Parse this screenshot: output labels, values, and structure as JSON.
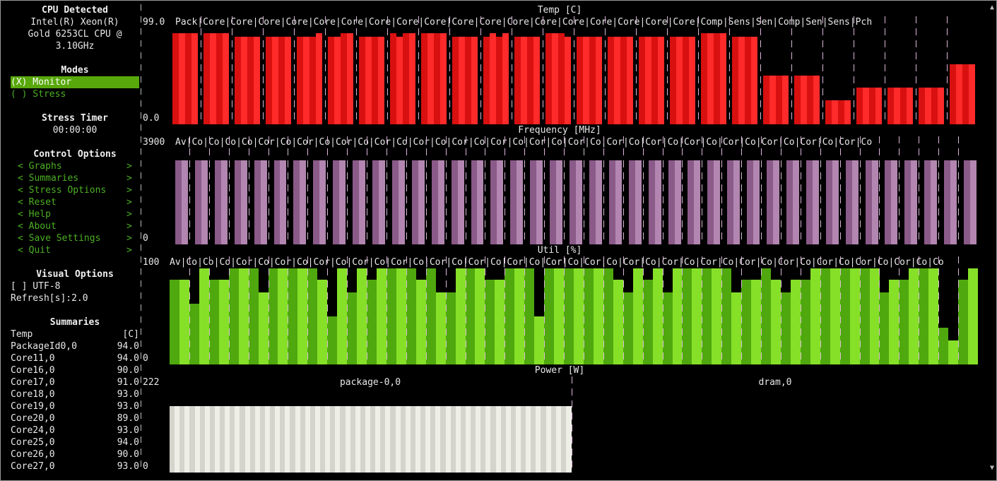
{
  "sidebar": {
    "cpu_header": "CPU Detected",
    "cpu_lines": [
      "Intel(R) Xeon(R)",
      "Gold 6253CL CPU @",
      "3.10GHz"
    ],
    "modes_header": "Modes",
    "mode_monitor": "(X) Monitor",
    "mode_stress": "( ) Stress",
    "timer_header": "Stress Timer",
    "timer_value": "00:00:00",
    "control_header": "Control Options",
    "control_items": [
      "Graphs",
      "Summaries",
      "Stress Options",
      "Reset",
      "Help",
      "About",
      "Save Settings",
      "Quit"
    ],
    "visual_header": "Visual Options",
    "utf8": "[ ] UTF-8",
    "refresh": "Refresh[s]:2.0",
    "summaries_header": "Summaries",
    "summary_col_name": "Temp",
    "summary_col_unit": "[C]",
    "summary_rows": [
      {
        "name": "PackageId0,0",
        "value": "94.0"
      },
      {
        "name": "Core11,0",
        "value": "94.0"
      },
      {
        "name": "Core16,0",
        "value": "90.0"
      },
      {
        "name": "Core17,0",
        "value": "91.0"
      },
      {
        "name": "Core18,0",
        "value": "93.0"
      },
      {
        "name": "Core19,0",
        "value": "93.0"
      },
      {
        "name": "Core20,0",
        "value": "89.0"
      },
      {
        "name": "Core24,0",
        "value": "93.0"
      },
      {
        "name": "Core25,0",
        "value": "94.0"
      },
      {
        "name": "Core26,0",
        "value": "90.0"
      },
      {
        "name": "Core27,0",
        "value": "93.0"
      }
    ]
  },
  "colors": {
    "temp_a": "#d81010",
    "temp_b": "#ff2a2a",
    "freq_a": "#8a5a88",
    "freq_b": "#b286b0",
    "util_a": "#4fa80e",
    "util_b": "#86e028",
    "power_a": "#d4d4cc",
    "power_b": "#efefe8",
    "menu_text": "#4caf24"
  },
  "graphs": {
    "temp": {
      "title": "Temp [C]",
      "ymax": "99.0",
      "ymin": "0.0",
      "labels": "Pack|Core|Core|Core|Core|Core|Core|Core|Core|Core|Core|Core|Core|Core|Core|Core|Core|Core|Core|Comp|Sens|Sen|Comp|Sen|Sens|Pch",
      "max": 99,
      "values": [
        [
          94,
          94,
          94,
          94
        ],
        [
          94,
          94,
          94,
          94
        ],
        [
          90,
          90,
          90,
          90
        ],
        [
          90,
          90,
          90,
          90
        ],
        [
          90,
          90,
          90,
          94
        ],
        [
          90,
          90,
          94,
          94
        ],
        [
          90,
          90,
          90,
          90
        ],
        [
          94,
          90,
          94,
          94
        ],
        [
          94,
          94,
          94,
          94
        ],
        [
          90,
          90,
          90,
          90
        ],
        [
          90,
          94,
          90,
          94
        ],
        [
          90,
          90,
          90,
          90
        ],
        [
          94,
          94,
          94,
          90
        ],
        [
          90,
          90,
          90,
          90
        ],
        [
          90,
          90,
          90,
          90
        ],
        [
          90,
          90,
          90,
          90
        ],
        [
          90,
          90,
          90,
          90
        ],
        [
          94,
          94,
          94,
          94
        ],
        [
          90,
          90,
          90,
          90
        ],
        [
          50,
          50,
          50,
          50
        ],
        [
          50,
          50,
          50,
          50
        ],
        [
          25,
          25,
          25,
          25
        ],
        [
          38,
          38,
          38,
          38
        ],
        [
          38,
          38,
          38,
          38
        ],
        [
          38,
          38,
          38,
          38
        ],
        [
          62,
          62,
          62,
          62
        ]
      ]
    },
    "freq": {
      "title": "Frequency [MHz]",
      "ymax": "3900",
      "ymin": "0",
      "labels": "Av|Co|Co|Co|Co|Cor|Co|Cor|Co|Cor|Co|Cor|Co|Cor|Co|Cor|Co|Cor|Co|Cor|Co|Cor|Co|Cor|Co|Cor|Co|Cor|Co|Cor|Co|Cor|Co|Cor|Co|Cor|Co",
      "max": 3900,
      "count": 41,
      "value": 3400
    },
    "util": {
      "title": "Util [%]",
      "ymax": "100",
      "ymin": "0",
      "labels": "Av|Co|Co|Co|Cor|Co|Cor|Co|Cor|Co|Cor|Co|Cor|Co|Cor|Co|Cor|Co|Cor|Co|Cor|Co|Cor|Co|Cor|Co|Cor|Co|Cor|Co|Cor|Co|Cor|Co|Cor|Co|Cor|Co|Cor|Co|Co",
      "max": 100,
      "values": [
        88,
        88,
        63,
        100,
        88,
        88,
        100,
        100,
        100,
        75,
        100,
        100,
        100,
        100,
        100,
        88,
        50,
        100,
        75,
        100,
        88,
        100,
        100,
        100,
        100,
        88,
        100,
        75,
        75,
        100,
        100,
        100,
        88,
        88,
        100,
        100,
        100,
        50,
        100,
        100,
        100,
        100,
        100,
        100,
        100,
        88,
        75,
        100,
        88,
        100,
        75,
        100,
        100,
        100,
        100,
        100,
        100,
        75,
        88,
        88,
        100,
        88,
        75,
        88,
        88,
        100,
        100,
        100,
        100,
        100,
        100,
        100,
        75,
        88,
        88,
        100,
        100,
        100,
        38,
        25,
        88,
        100
      ]
    },
    "power": {
      "title": "Power [W]",
      "ymax": "222",
      "ymin": "0",
      "package_label": "package-0,0",
      "dram_label": "dram,0",
      "max": 222,
      "values": [
        175,
        175,
        175,
        175,
        175,
        175,
        175,
        175,
        175,
        175,
        175,
        175,
        175,
        175,
        175,
        175,
        175,
        175,
        175,
        175,
        175,
        175,
        175,
        175,
        175,
        175,
        175,
        175,
        175,
        175,
        175,
        175,
        175,
        175,
        175,
        175,
        175,
        175,
        175,
        175,
        175,
        175,
        175,
        175,
        175,
        175,
        175,
        175,
        175,
        175,
        175,
        175,
        175,
        175,
        175,
        175,
        175,
        175,
        175,
        175,
        175,
        175,
        175,
        175,
        175,
        175,
        175,
        175,
        175,
        175,
        175,
        175,
        175,
        175,
        175,
        175,
        175,
        175,
        175,
        175
      ]
    }
  }
}
